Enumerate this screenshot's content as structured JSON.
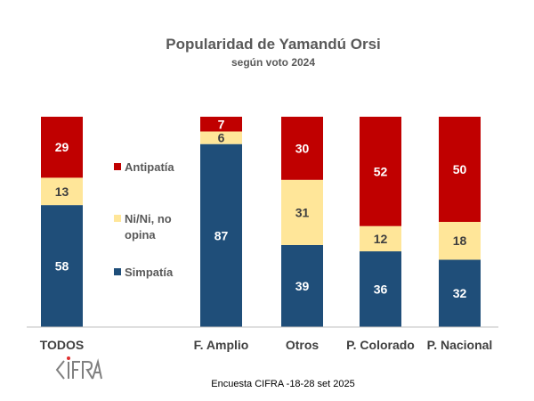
{
  "chart_data": {
    "type": "bar",
    "stacked": true,
    "title": "Popularidad de Yamandú Orsi",
    "subtitle": "según voto 2024",
    "categories": [
      "TODOS",
      "F. Amplio",
      "Otros",
      "P. Colorado",
      "P. Nacional"
    ],
    "series": [
      {
        "name": "Simpatía",
        "color": "#1F4E79",
        "label_color": "#FFFFFF",
        "values": [
          58,
          87,
          39,
          36,
          32
        ]
      },
      {
        "name": "Ni/Ni, no opina",
        "color": "#FFE699",
        "label_color": "#404040",
        "values": [
          13,
          6,
          31,
          12,
          18
        ]
      },
      {
        "name": "Antipatía",
        "color": "#C00000",
        "label_color": "#FFFFFF",
        "values": [
          29,
          7,
          30,
          52,
          50
        ]
      }
    ],
    "legend_labels": [
      "Antipatía",
      "Ni/Ni, no",
      "opina",
      "Simpatía"
    ],
    "ylim": [
      0,
      100
    ],
    "grid": false,
    "legend_placement": "left, between first and second bar"
  },
  "footer": "Encuesta CIFRA -18-28 set 2025",
  "logo": "CIFRA"
}
